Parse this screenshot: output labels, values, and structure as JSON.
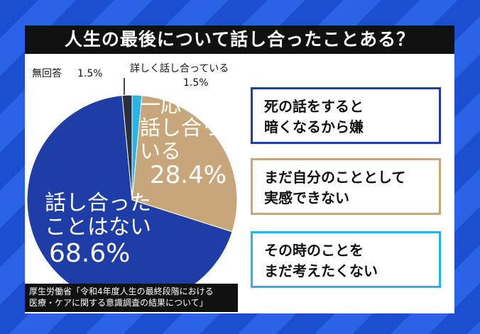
{
  "chart_data": {
    "type": "pie",
    "title": "人生の最後について話し合ったことある？",
    "categories": [
      "詳しく話し合っている",
      "一応\n話し合って\nいる",
      "話し合った\nことはない",
      "無回答"
    ],
    "values": [
      1.5,
      28.4,
      68.6,
      1.5
    ],
    "value_labels": [
      "1.5%",
      "28.4%",
      "68.6%",
      "1.5%"
    ],
    "colors": [
      "#2ab4e6",
      "#c8a67b",
      "#1f3da6",
      "#2b2e3b"
    ]
  },
  "notes": [
    {
      "text": "死の話をすると\n暗くなるから嫌",
      "color": "#1f3da6"
    },
    {
      "text": "まだ自分のこととして\n実感できない",
      "color": "#c8a67b"
    },
    {
      "text": "その時のことを\nまだ考えたくない",
      "color": "#2ab4e6"
    }
  ],
  "source": "厚生労働省「令和4年度人生の最終段階における\n医療・ケアに関する意識調査の結果について」"
}
